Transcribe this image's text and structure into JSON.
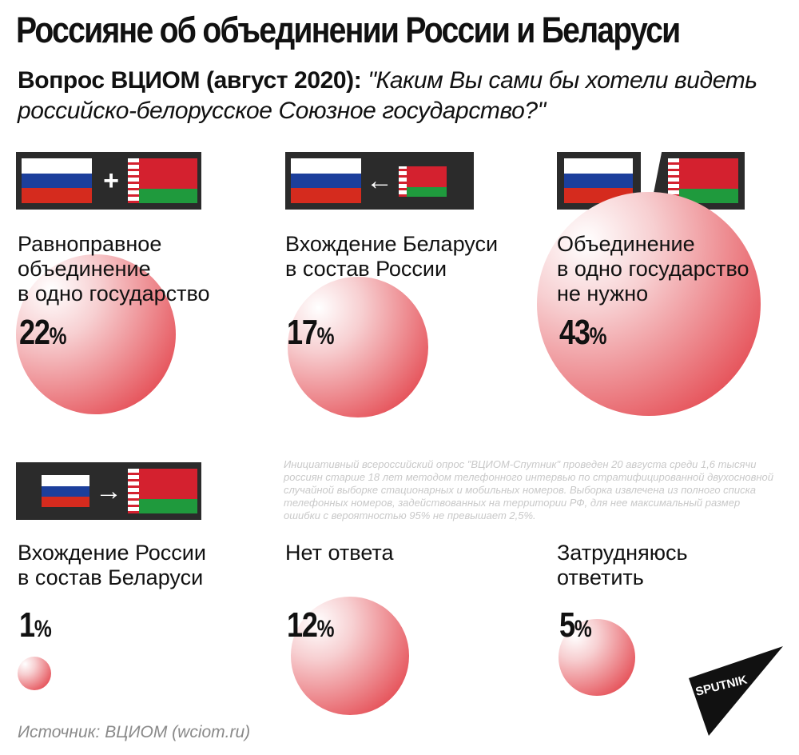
{
  "title": "Россияне об объединении России и Беларуси",
  "question": {
    "label": "Вопрос ВЦИОМ (август 2020):",
    "text": "\"Каким Вы сами бы хотели видеть российско-белорусское Союзное государство?\""
  },
  "colors": {
    "bubble_red": "#e02a33",
    "panel_bg": "#2b2b2b",
    "russia_flag": [
      "#ffffff",
      "#1c3f9c",
      "#d52b1e"
    ],
    "belarus_flag": [
      "#d4212f",
      "#1f9a3d"
    ]
  },
  "icons": {
    "plus": "+",
    "arrow_left": "←",
    "slash": "/",
    "arrow_right": "→"
  },
  "chart_data": {
    "type": "bubble",
    "unit": "%",
    "categories": [
      "Равноправное объединение в одно государство",
      "Вхождение Беларуси в состав России",
      "Объединение в одно государство не нужно",
      "Вхождение России в состав Беларуси",
      "Нет ответа",
      "Затрудняюсь ответить"
    ],
    "labels": [
      "Равноправное\nобъединение\nв одно государство",
      "Вхождение Беларуси\nв состав России",
      "Объединение\nв одно государство\nне нужно",
      "Вхождение России\nв состав Беларуси",
      "Нет ответа",
      "Затрудняюсь\nответить"
    ],
    "values": [
      22,
      17,
      43,
      1,
      12,
      5
    ]
  },
  "footnote": "Инициативный всероссийский опрос \"ВЦИОМ-Спутник\" проведен 20 августа среди 1,6 тысячи россиян старше 18 лет методом телефонного интервью по стратифицированной двухосновной случайной выборке стационарных и мобильных номеров. Выборка извлечена из полного списка телефонных номеров, задействованных на территории РФ, для нее максимальный размер ошибки с вероятностью 95% не превышает 2,5%.",
  "source": "Источник: ВЦИОМ (wciom.ru)",
  "logo_text": "SPUTNIK"
}
